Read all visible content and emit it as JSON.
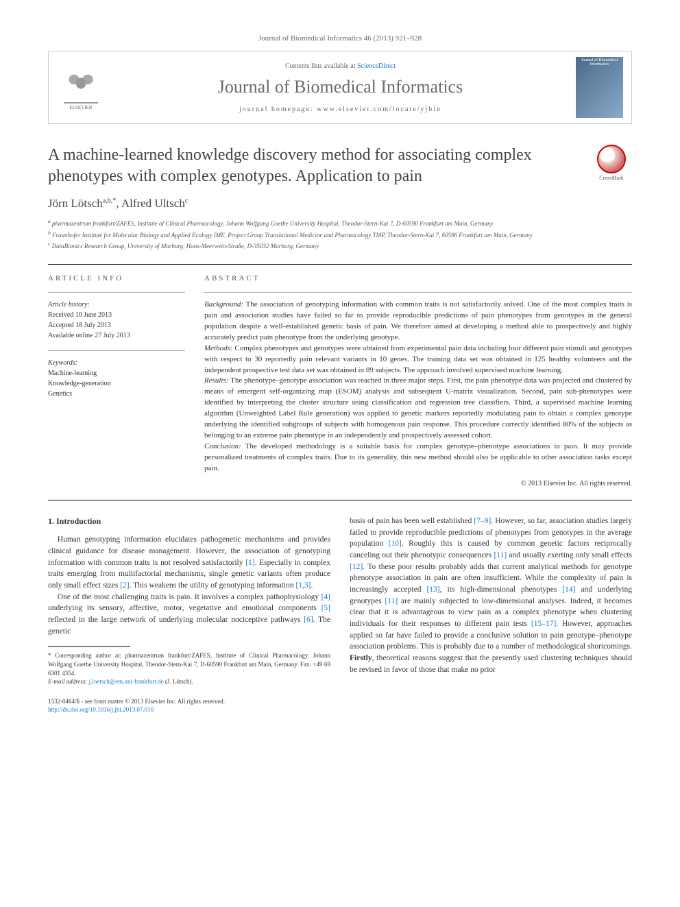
{
  "citation_top": "Journal of Biomedical Informatics 46 (2013) 921–928",
  "header": {
    "contents_prefix": "Contents lists available at ",
    "contents_link": "ScienceDirect",
    "journal_name": "Journal of Biomedical Informatics",
    "homepage_prefix": "journal homepage: ",
    "homepage_url": "www.elsevier.com/locate/yjbin",
    "publisher": "ELSEVIER"
  },
  "crossmark_label": "CrossMark",
  "title": "A machine-learned knowledge discovery method for associating complex phenotypes with complex genotypes. Application to pain",
  "authors": "Jörn Lötsch",
  "authors_sup1": "a,b,",
  "authors_star": "*",
  "authors_sep": ", ",
  "authors2": "Alfred Ultsch",
  "authors_sup2": "c",
  "affiliations": {
    "a": "pharmazentrum frankfurt/ZAFES, Institute of Clinical Pharmacology, Johann Wolfgang Goethe University Hospital, Theodor-Stern-Kai 7, D-60590 Frankfurt am Main, Germany",
    "b": "Fraunhofer Institute for Molecular Biology and Applied Ecology IME, Project Group Translational Medicine and Pharmacology TMP, Theodor-Stern-Kai 7, 60596 Frankfurt am Main, Germany",
    "c": "DataBionics Research Group, University of Marburg, Hans-Meerwein-Straße, D-35032 Marburg, Germany"
  },
  "article_info": {
    "header": "ARTICLE INFO",
    "history_label": "Article history:",
    "received": "Received 10 June 2013",
    "accepted": "Accepted 18 July 2013",
    "online": "Available online 27 July 2013",
    "keywords_label": "Keywords:",
    "keywords": [
      "Machine-learning",
      "Knowledge-generation",
      "Genetics"
    ]
  },
  "abstract": {
    "header": "ABSTRACT",
    "background_label": "Background:",
    "background": " The association of genotyping information with common traits is not satisfactorily solved. One of the most complex traits is pain and association studies have failed so far to provide reproducible predictions of pain phenotypes from genotypes in the general population despite a well-established genetic basis of pain. We therefore aimed at developing a method able to prospectively and highly accurately predict pain phenotype from the underlying genotype.",
    "methods_label": "Methods:",
    "methods": " Complex phenotypes and genotypes were obtained from experimental pain data including four different pain stimuli and genotypes with respect to 30 reportedly pain relevant variants in 10 genes. The training data set was obtained in 125 healthy volunteers and the independent prospective test data set was obtained in 89 subjects. The approach involved supervised machine learning.",
    "results_label": "Results:",
    "results": " The phenotype–genotype association was reached in three major steps. First, the pain phenotype data was projected and clustered by means of emergent self-organizing map (ESOM) analysis and subsequent U-matrix visualization. Second, pain sub-phenotypes were identified by interpreting the cluster structure using classification and regression tree classifiers. Third, a supervised machine learning algorithm (Unweighted Label Rule generation) was applied to genetic markers reportedly modulating pain to obtain a complex genotype underlying the identified subgroups of subjects with homogenous pain response. This procedure correctly identified 80% of the subjects as belonging to an extreme pain phenotype in an independently and prospectively assessed cohort.",
    "conclusion_label": "Conclusion:",
    "conclusion": " The developed methodology is a suitable basis for complex genotype–phenotype associations in pain. It may provide personalized treatments of complex traits. Due to its generality, this new method should also be applicable to other association tasks except pain.",
    "copyright": "© 2013 Elsevier Inc. All rights reserved."
  },
  "body": {
    "intro_heading": "1. Introduction",
    "p1": "Human genotyping information elucidates pathogenetic mechanisms and provides clinical guidance for disease management. However, the association of genotyping information with common traits is not resolved satisfactorily [1]. Especially in complex traits emerging from multifactorial mechanisms, single genetic variants often produce only small effect sizes [2]. This weakens the utility of genotyping information [1,3].",
    "p2": "One of the most challenging traits is pain. It involves a complex pathophysiology [4] underlying its sensory, affective, motor, vegetative and emotional components [5] reflected in the large network of underlying molecular nociceptive pathways [6]. The genetic",
    "p3": "basis of pain has been well established [7–9]. However, so far, association studies largely failed to provide reproducible predictions of phenotypes from genotypes in the average population [10]. Roughly this is caused by common genetic factors reciprocally canceling out their phenotypic consequences [11] and usually exerting only small effects [12]. To these poor results probably adds that current analytical methods for genotype phenotype association in pain are often insufficient. While the complexity of pain is increasingly accepted [13], its high-dimensional phenotypes [14] and underlying genotypes [11] are mainly subjected to low-dimensional analyses. Indeed, it becomes clear that it is advantageous to view pain as a complex phenotype when clustering individuals for their responses to different pain tests [15–17]. However, approaches applied so far have failed to provide a conclusive solution to pain genotype–phenotype association problems. This is probably due to a number of methodological shortcomings. Firstly, theoretical reasons suggest that the presently used clustering techniques should be revised in favor of those that make no prior"
  },
  "footnotes": {
    "corr_label": "* Corresponding author at: pharmazentrum frankfurt/ZAFES, Institute of Clinical Pharmacology, Johann Wolfgang Goethe University Hospital, Theodor-Stern-Kai 7, D-60590 Frankfurt am Main, Germany. Fax: +49 69 6301 4354.",
    "email_label": "E-mail address: ",
    "email": "j.loetsch@em.uni-frankfurt.de",
    "email_suffix": " (J. Lötsch)."
  },
  "footer": {
    "issn": "1532-0464/$ - see front matter © 2013 Elsevier Inc. All rights reserved.",
    "doi": "http://dx.doi.org/10.1016/j.jbi.2013.07.010"
  }
}
